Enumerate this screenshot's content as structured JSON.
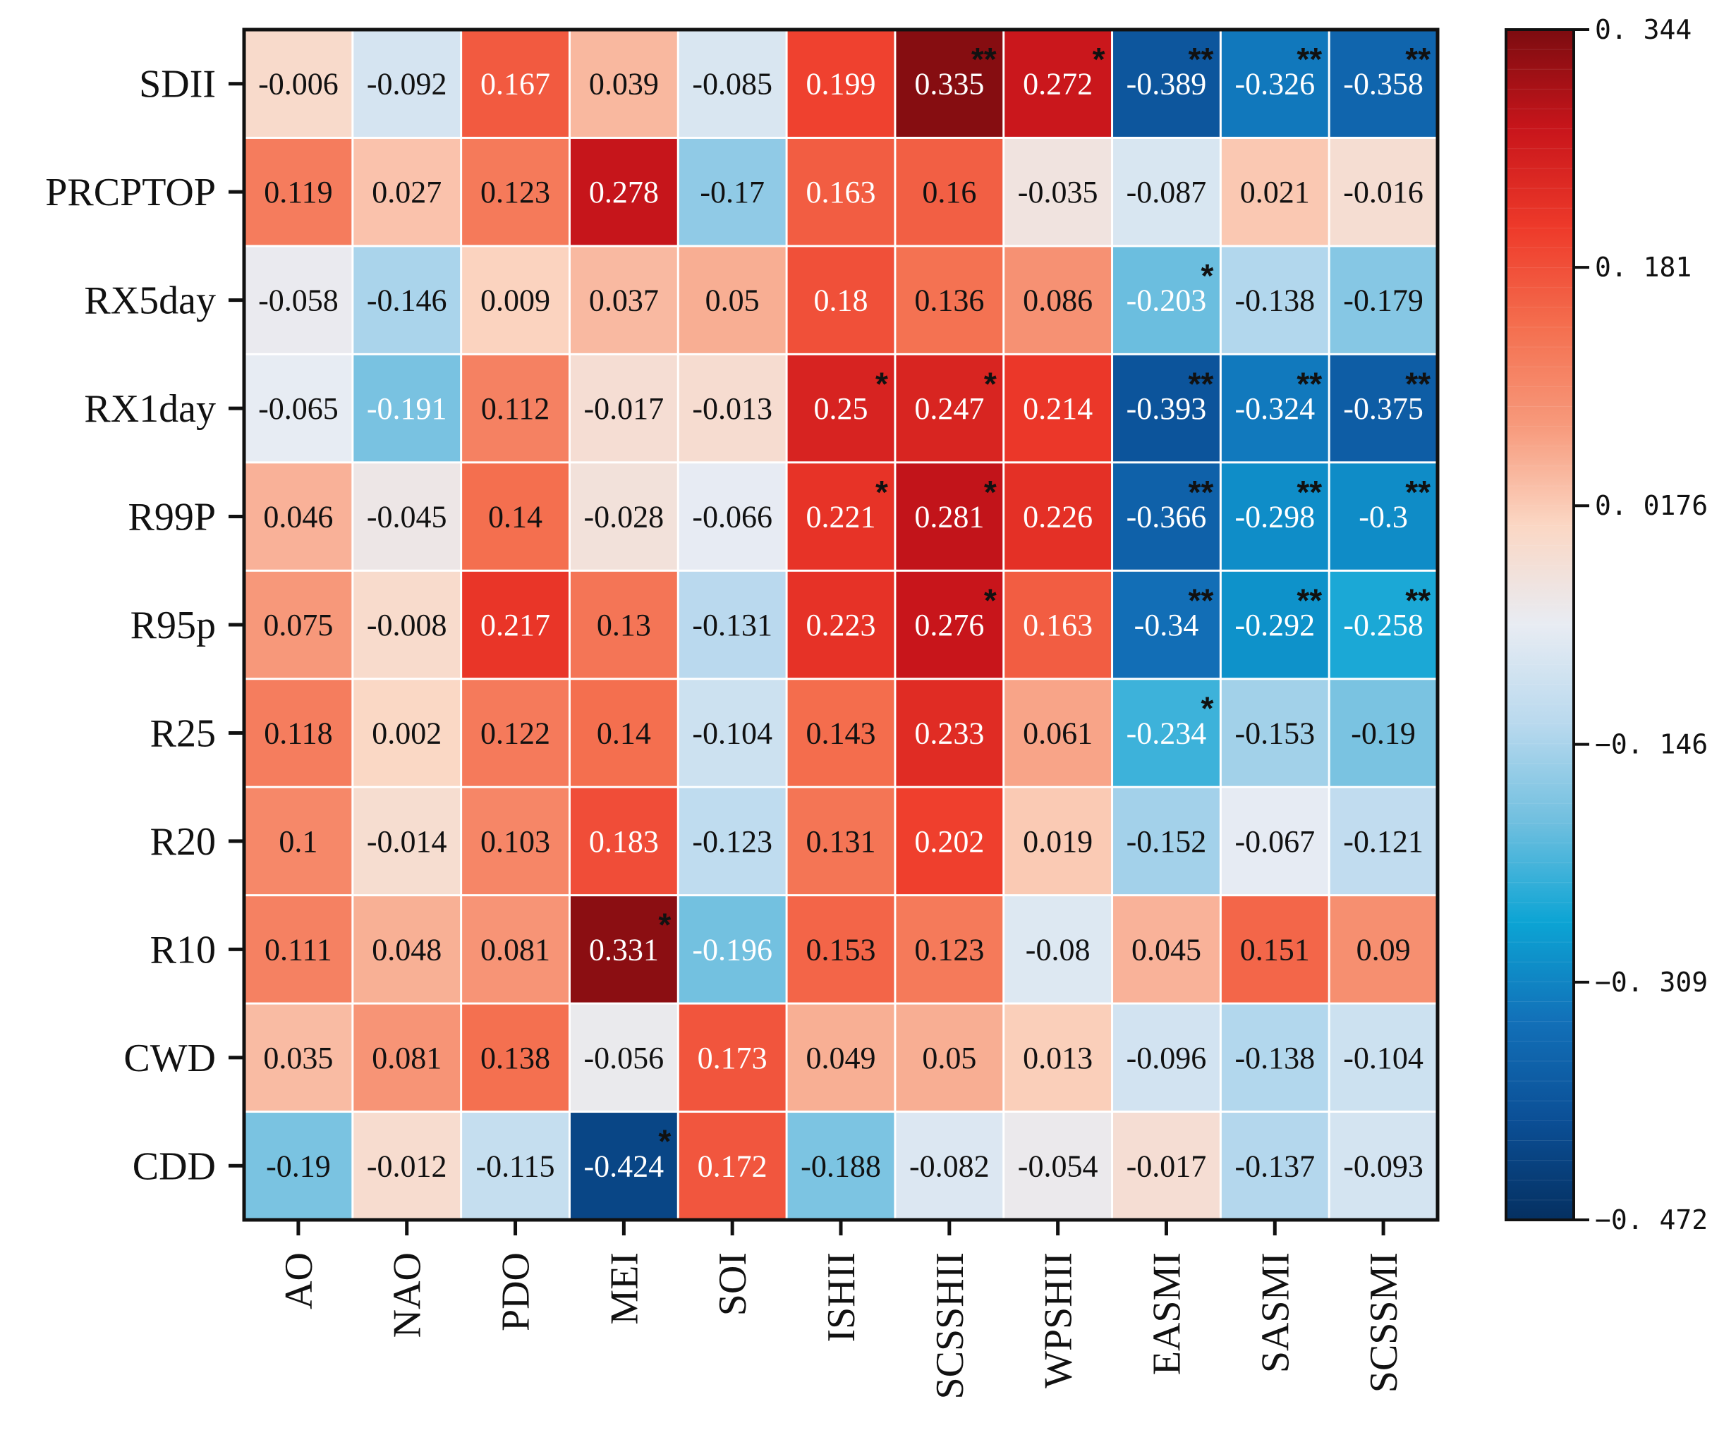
{
  "chart_data": {
    "type": "heatmap",
    "title": "",
    "xlabel": "",
    "ylabel": "",
    "rows": [
      "SDII",
      "PRCPTOP",
      "RX5day",
      "RX1day",
      "R99P",
      "R95p",
      "R25",
      "R20",
      "R10",
      "CWD",
      "CDD"
    ],
    "columns": [
      "AO",
      "NAO",
      "PDO",
      "MEI",
      "SOI",
      "ISHII",
      "SCSSHII",
      "WPSHII",
      "EASMI",
      "SASMI",
      "SCSSMI"
    ],
    "values": [
      [
        "-0.006",
        "-0.092",
        "0.167",
        "0.039",
        "-0.085",
        "0.199",
        "0.335",
        "0.272",
        "-0.389",
        "-0.326",
        "-0.358"
      ],
      [
        "0.119",
        "0.027",
        "0.123",
        "0.278",
        "-0.17",
        "0.163",
        "0.16",
        "-0.035",
        "-0.087",
        "0.021",
        "-0.016"
      ],
      [
        "-0.058",
        "-0.146",
        "0.009",
        "0.037",
        "0.05",
        "0.18",
        "0.136",
        "0.086",
        "-0.203",
        "-0.138",
        "-0.179"
      ],
      [
        "-0.065",
        "-0.191",
        "0.112",
        "-0.017",
        "-0.013",
        "0.25",
        "0.247",
        "0.214",
        "-0.393",
        "-0.324",
        "-0.375"
      ],
      [
        "0.046",
        "-0.045",
        "0.14",
        "-0.028",
        "-0.066",
        "0.221",
        "0.281",
        "0.226",
        "-0.366",
        "-0.298",
        "-0.3"
      ],
      [
        "0.075",
        "-0.008",
        "0.217",
        "0.13",
        "-0.131",
        "0.223",
        "0.276",
        "0.163",
        "-0.34",
        "-0.292",
        "-0.258"
      ],
      [
        "0.118",
        "0.002",
        "0.122",
        "0.14",
        "-0.104",
        "0.143",
        "0.233",
        "0.061",
        "-0.234",
        "-0.153",
        "-0.19"
      ],
      [
        "0.1",
        "-0.014",
        "0.103",
        "0.183",
        "-0.123",
        "0.131",
        "0.202",
        "0.019",
        "-0.152",
        "-0.067",
        "-0.121"
      ],
      [
        "0.111",
        "0.048",
        "0.081",
        "0.331",
        "-0.196",
        "0.153",
        "0.123",
        "-0.08",
        "0.045",
        "0.151",
        "0.09"
      ],
      [
        "0.035",
        "0.081",
        "0.138",
        "-0.056",
        "0.173",
        "0.049",
        "0.05",
        "0.013",
        "-0.096",
        "-0.138",
        "-0.104"
      ],
      [
        "-0.19",
        "-0.012",
        "-0.115",
        "-0.424",
        "0.172",
        "-0.188",
        "-0.082",
        "-0.054",
        "-0.017",
        "-0.137",
        "-0.093"
      ]
    ],
    "significance": [
      [
        "",
        "",
        "",
        "",
        "",
        "",
        "**",
        "*",
        "**",
        "**",
        "**"
      ],
      [
        "",
        "",
        "",
        "",
        "",
        "",
        "",
        "",
        "",
        "",
        ""
      ],
      [
        "",
        "",
        "",
        "",
        "",
        "",
        "",
        "",
        "*",
        "",
        ""
      ],
      [
        "",
        "",
        "",
        "",
        "",
        "*",
        "*",
        "",
        "**",
        "**",
        "**"
      ],
      [
        "",
        "",
        "",
        "",
        "",
        "*",
        "*",
        "",
        "**",
        "**",
        "**"
      ],
      [
        "",
        "",
        "",
        "",
        "",
        "",
        "*",
        "",
        "**",
        "**",
        "**"
      ],
      [
        "",
        "",
        "",
        "",
        "",
        "",
        "",
        "",
        "*",
        "",
        ""
      ],
      [
        "",
        "",
        "",
        "",
        "",
        "",
        "",
        "",
        "",
        "",
        ""
      ],
      [
        "",
        "",
        "",
        "*",
        "",
        "",
        "",
        "",
        "",
        "",
        ""
      ],
      [
        "",
        "",
        "",
        "",
        "",
        "",
        "",
        "",
        "",
        "",
        ""
      ],
      [
        "",
        "",
        "",
        "*",
        "",
        "",
        "",
        "",
        "",
        "",
        ""
      ]
    ],
    "colorbar": {
      "range": [
        -0.472,
        0.344
      ],
      "ticks": [
        0.344,
        0.181,
        0.0176,
        -0.146,
        -0.309,
        -0.472
      ],
      "tick_labels": [
        "0. 344",
        "0. 181",
        "0. 0176",
        "−0. 146",
        "−0. 309",
        "−0. 472"
      ]
    },
    "colors": {
      "scale": [
        "#053061",
        "#0b4f96",
        "#1270b8",
        "#0ca4d4",
        "#6fbfdf",
        "#b9d9ee",
        "#e8ecf3",
        "#fbd7c4",
        "#f79a7c",
        "#f46f4f",
        "#ee3a2a",
        "#c8151b",
        "#7c0c10"
      ],
      "border": "#111111",
      "gap": "#ffffff"
    }
  }
}
